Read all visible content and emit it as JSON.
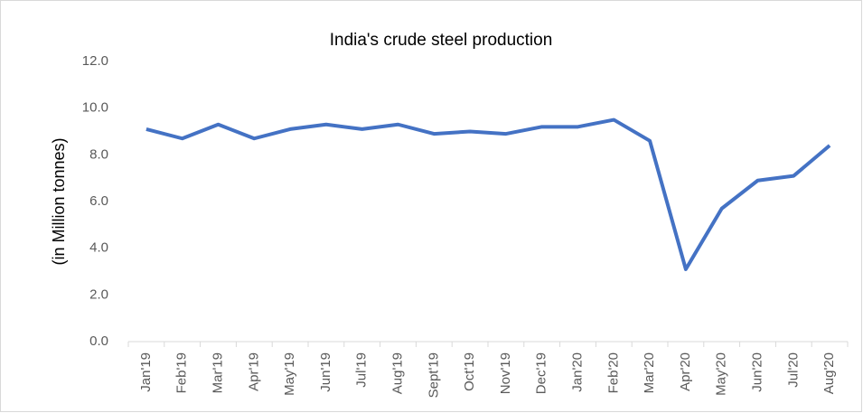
{
  "chart_data": {
    "type": "line",
    "title": "India's  crude  steel  production",
    "y_label": "(in Million tonnes)",
    "categories": [
      "Jan'19",
      "Feb'19",
      "Mar'19",
      "Apr'19",
      "May'19",
      "Jun'19",
      "Jul'19",
      "Aug'19",
      "Sept'19",
      "Oct'19",
      "Nov'19",
      "Dec'19",
      "Jan'20",
      "Feb'20",
      "Mar'20",
      "Apr'20",
      "May'20",
      "Jun'20",
      "Jul'20",
      "Aug'20"
    ],
    "values": [
      9.1,
      8.7,
      9.3,
      8.7,
      9.1,
      9.3,
      9.1,
      9.3,
      8.9,
      9.0,
      8.9,
      9.2,
      9.2,
      9.5,
      8.6,
      3.1,
      5.7,
      6.9,
      7.1,
      8.4
    ],
    "color": "#4472c4",
    "ylim": [
      0,
      12
    ],
    "yticks": [
      {
        "value": 0,
        "label": "0.0"
      },
      {
        "value": 2,
        "label": "2.0"
      },
      {
        "value": 4,
        "label": "4.0"
      },
      {
        "value": 6,
        "label": "6.0"
      },
      {
        "value": 8,
        "label": "8.0"
      },
      {
        "value": 10,
        "label": "10.0"
      },
      {
        "value": 12,
        "label": "12.0"
      }
    ]
  }
}
